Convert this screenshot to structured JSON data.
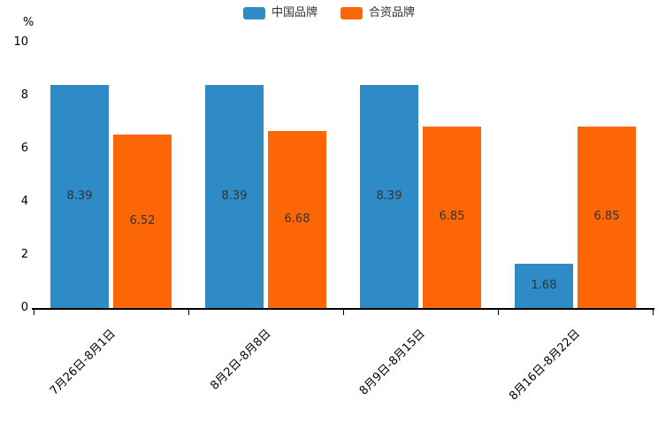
{
  "chart_data": {
    "type": "bar",
    "title": "",
    "unit": "%",
    "categories": [
      "7月26日-8月1日",
      "8月2日-8月8日",
      "8月9日-8月15日",
      "8月16日-8月22日"
    ],
    "series": [
      {
        "name": "中国品牌",
        "color": "#2E8BC5",
        "values": [
          8.39,
          8.39,
          8.39,
          1.68
        ]
      },
      {
        "name": "合资品牌",
        "color": "#FC6607",
        "values": [
          6.52,
          6.68,
          6.85,
          6.85
        ]
      }
    ],
    "ylim": [
      0,
      10
    ],
    "yticks": [
      0,
      2,
      4,
      6,
      8,
      10
    ],
    "ylabel": "%",
    "xlabel": "",
    "legend_position": "top",
    "grid": false,
    "value_labels": "inside-center"
  }
}
